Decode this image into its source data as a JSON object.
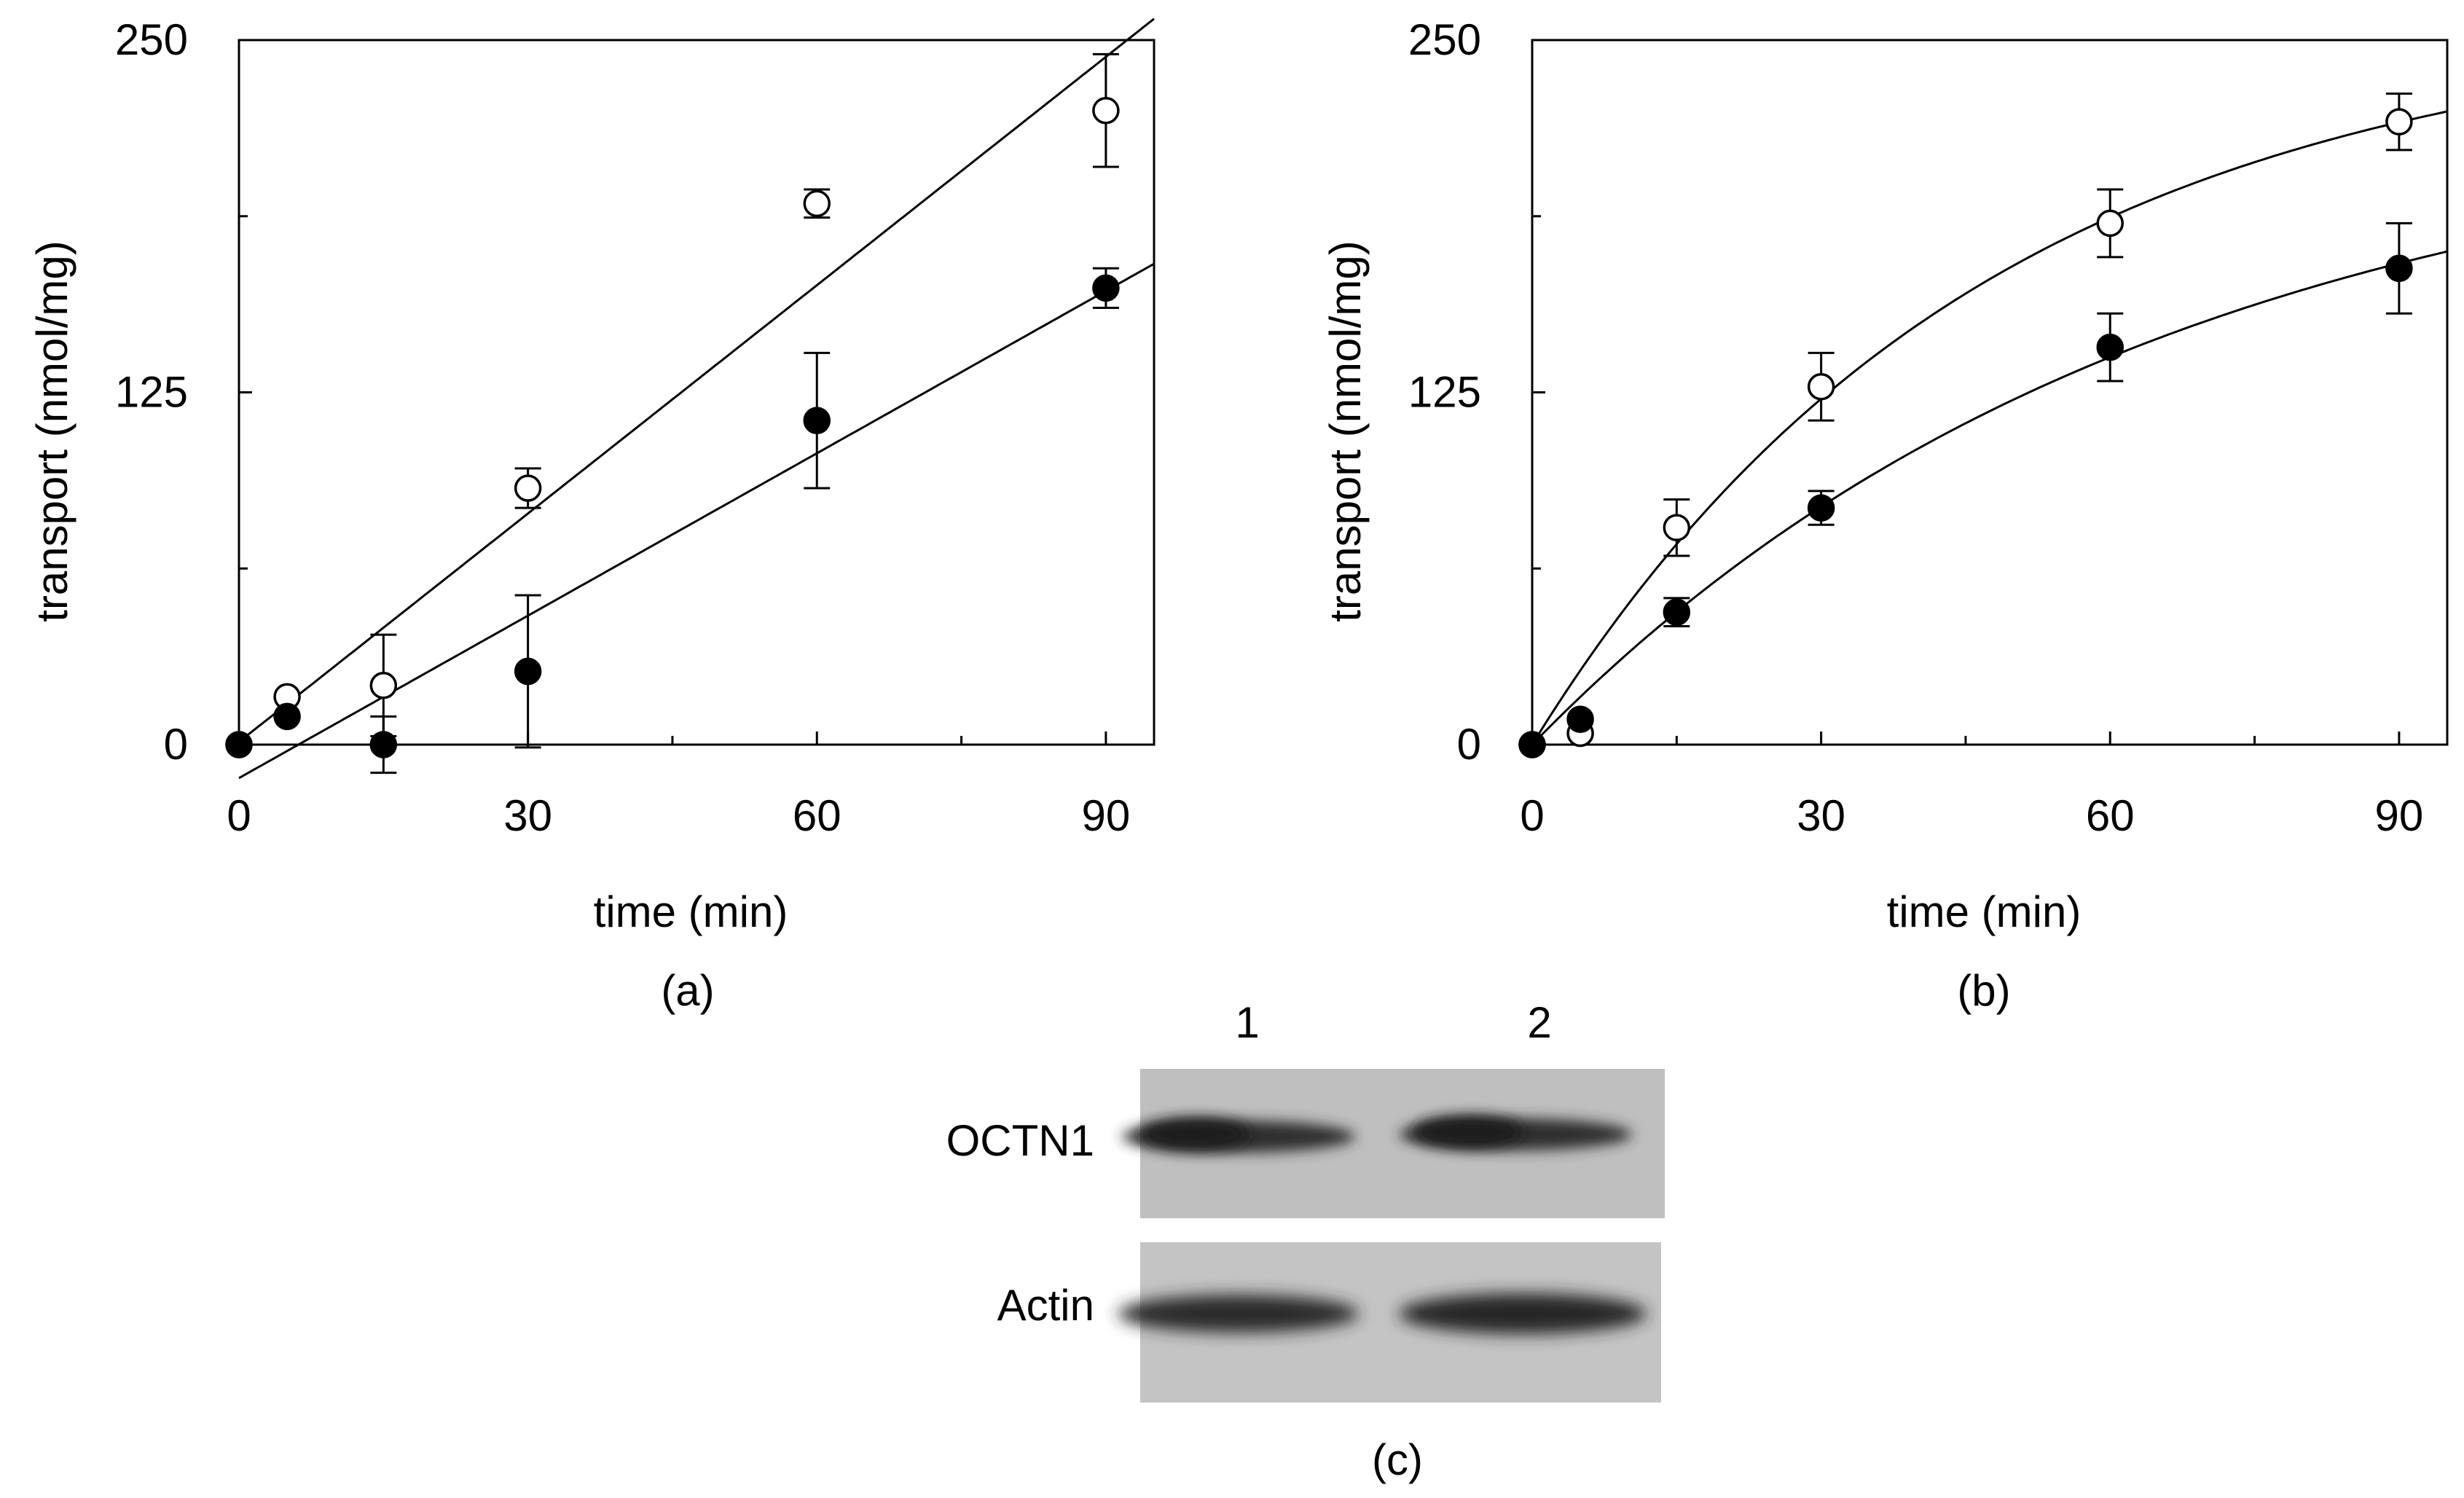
{
  "chart_data": [
    {
      "type": "scatter",
      "panel_label": "(a)",
      "xlabel": "time (min)",
      "ylabel": "transport (nmol/mg)",
      "xlim": [
        0,
        95
      ],
      "ylim": [
        0,
        250
      ],
      "xticks": [
        0,
        30,
        60,
        90
      ],
      "yticks": [
        0,
        125,
        250
      ],
      "grid": false,
      "series": [
        {
          "marker": "open-circle",
          "x": [
            0,
            5,
            15,
            30,
            60,
            90
          ],
          "y": [
            0,
            17,
            21,
            91,
            192,
            225
          ],
          "err": [
            0,
            0,
            18,
            7,
            5,
            20
          ],
          "fit": "line"
        },
        {
          "marker": "filled-circle",
          "x": [
            0,
            5,
            15,
            30,
            60,
            90
          ],
          "y": [
            0,
            10,
            0,
            26,
            115,
            162
          ],
          "err": [
            0,
            0,
            10,
            27,
            24,
            7
          ],
          "fit": "line"
        }
      ]
    },
    {
      "type": "scatter",
      "panel_label": "(b)",
      "xlabel": "time (min)",
      "ylabel": "transport (nmol/mg)",
      "xlim": [
        0,
        95
      ],
      "ylim": [
        0,
        250
      ],
      "xticks": [
        0,
        30,
        60,
        90
      ],
      "yticks": [
        0,
        125,
        250
      ],
      "grid": false,
      "series": [
        {
          "marker": "open-circle",
          "x": [
            0,
            5,
            15,
            30,
            60,
            90
          ],
          "y": [
            0,
            4,
            77,
            127,
            185,
            221
          ],
          "err": [
            0,
            0,
            10,
            12,
            12,
            10
          ],
          "fit": "saturation"
        },
        {
          "marker": "filled-circle",
          "x": [
            0,
            5,
            15,
            30,
            60,
            90
          ],
          "y": [
            0,
            9,
            47,
            84,
            141,
            169
          ],
          "err": [
            0,
            0,
            5,
            6,
            12,
            16
          ],
          "fit": "saturation"
        }
      ]
    }
  ],
  "blot": {
    "panel_label": "(c)",
    "lanes": [
      "1",
      "2"
    ],
    "rows": [
      "OCTN1",
      "Actin"
    ]
  }
}
